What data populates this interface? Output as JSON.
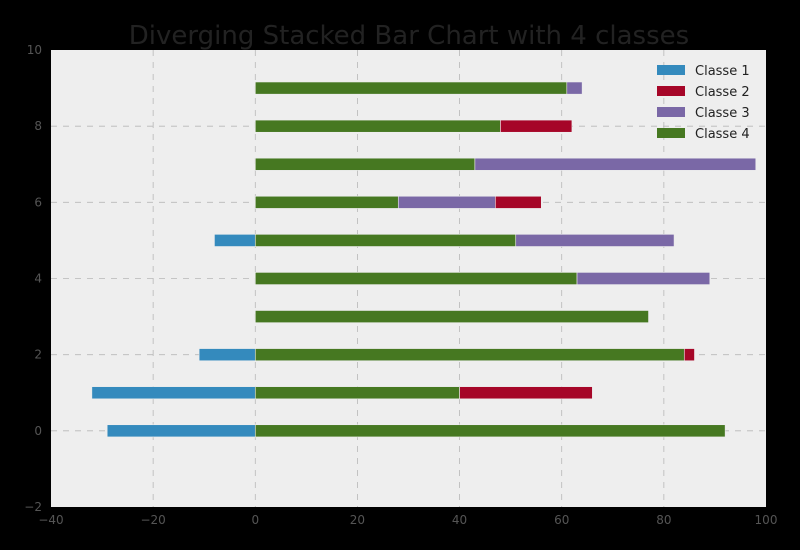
{
  "chart_data": {
    "type": "bar",
    "orientation": "horizontal",
    "stacked": true,
    "title": "Diverging Stacked Bar Chart with 4 classes",
    "xlabel": "",
    "ylabel": "",
    "xlim": [
      -40,
      100
    ],
    "ylim": [
      -2,
      10
    ],
    "x_ticks": [
      "−40",
      "−20",
      "0",
      "20",
      "40",
      "60",
      "80",
      "100"
    ],
    "y_ticks": [
      "−2",
      "0",
      "2",
      "4",
      "6",
      "8",
      "10"
    ],
    "grid": true,
    "legend_position": "top-right",
    "y": [
      0,
      1,
      2,
      3,
      4,
      5,
      6,
      7,
      8,
      9
    ],
    "series": [
      {
        "name": "Classe 1",
        "color": "#348abd",
        "values": [
          -29,
          -32,
          -11,
          0,
          0,
          -8,
          0,
          0,
          0,
          0
        ]
      },
      {
        "name": "Classe 2",
        "color": "#a60628",
        "values": [
          0,
          26,
          2,
          0,
          0,
          0,
          9,
          0,
          14,
          0
        ]
      },
      {
        "name": "Classe 3",
        "color": "#7a68a6",
        "values": [
          0,
          0,
          0,
          0,
          26,
          31,
          19,
          55,
          0,
          3
        ]
      },
      {
        "name": "Classe 4",
        "color": "#467821",
        "values": [
          92,
          40,
          84,
          77,
          63,
          51,
          28,
          43,
          48,
          61
        ]
      }
    ],
    "stack_order": [
      "Classe 4",
      "Classe 3",
      "Classe 2"
    ],
    "colors": {
      "plot_bg": "#eeeeee",
      "figure_bg": "#000000",
      "edge": "#eeeeee"
    }
  }
}
